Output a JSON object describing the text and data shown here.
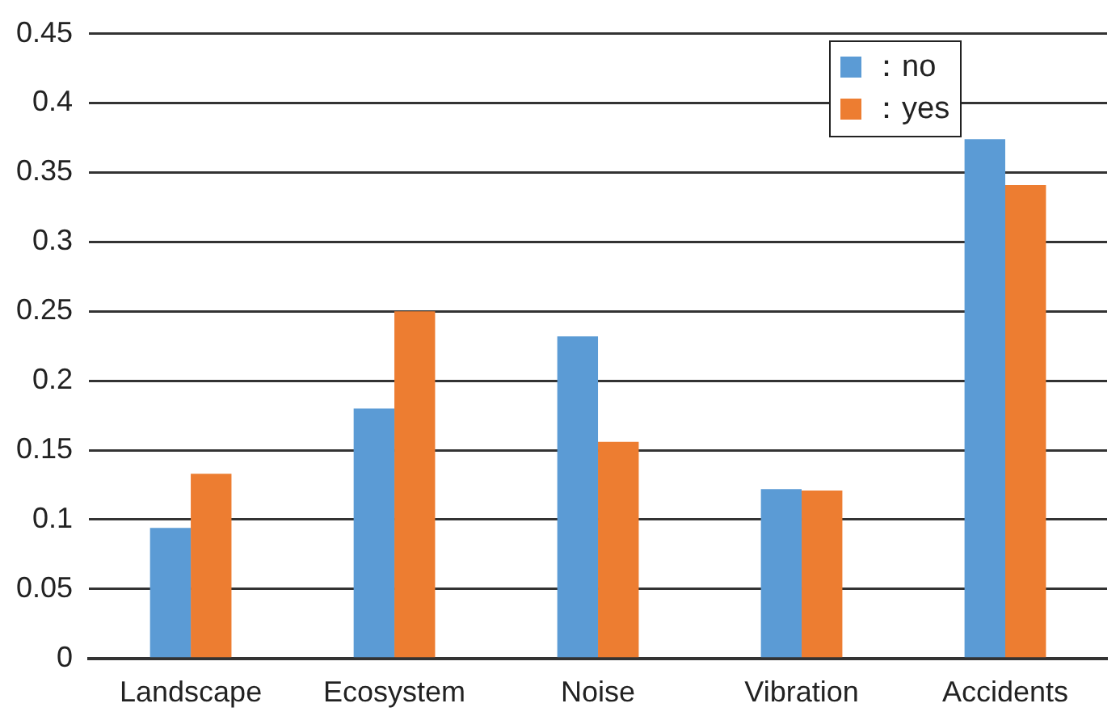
{
  "chart_data": {
    "type": "bar",
    "categories": [
      "Landscape",
      "Ecosystem",
      "Noise",
      "Vibration",
      "Accidents"
    ],
    "series": [
      {
        "name": "：no",
        "color": "#5b9bd5",
        "values": [
          0.094,
          0.18,
          0.232,
          0.122,
          0.374
        ]
      },
      {
        "name": "：yes",
        "color": "#ed7d31",
        "values": [
          0.133,
          0.25,
          0.156,
          0.121,
          0.341
        ]
      }
    ],
    "ylim": [
      0,
      0.45
    ],
    "yticks": [
      0,
      0.05,
      0.1,
      0.15,
      0.2,
      0.25,
      0.3,
      0.35,
      0.4,
      0.45
    ],
    "grid": "y",
    "legend": "top right"
  }
}
